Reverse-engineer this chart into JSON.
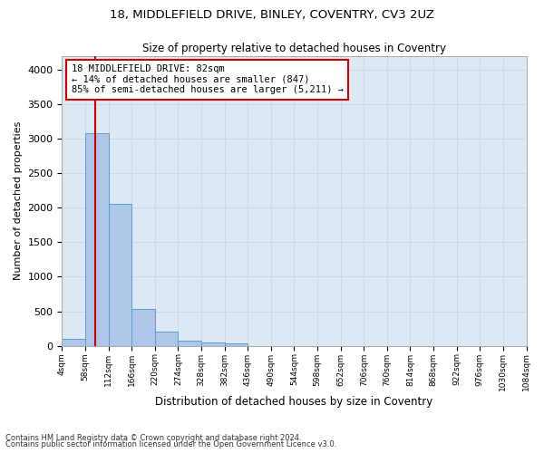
{
  "title_line1": "18, MIDDLEFIELD DRIVE, BINLEY, COVENTRY, CV3 2UZ",
  "title_line2": "Size of property relative to detached houses in Coventry",
  "xlabel": "Distribution of detached houses by size in Coventry",
  "ylabel": "Number of detached properties",
  "bar_edges": [
    4,
    58,
    112,
    166,
    220,
    274,
    328,
    382,
    436,
    490,
    544,
    598,
    652,
    706,
    760,
    814,
    868,
    922,
    976,
    1030,
    1084
  ],
  "bar_heights": [
    100,
    3080,
    2050,
    530,
    210,
    75,
    50,
    30,
    0,
    0,
    0,
    0,
    0,
    0,
    0,
    0,
    0,
    0,
    0,
    0
  ],
  "bar_color": "#aec6e8",
  "bar_edgecolor": "#5a9fd4",
  "grid_color": "#d0d8e8",
  "background_color": "#dde8f5",
  "fig_background": "#ffffff",
  "property_sqm": 82,
  "red_line_color": "#cc0000",
  "annotation_line1": "18 MIDDLEFIELD DRIVE: 82sqm",
  "annotation_line2": "← 14% of detached houses are smaller (847)",
  "annotation_line3": "85% of semi-detached houses are larger (5,211) →",
  "annotation_box_color": "#cc0000",
  "ylim": [
    0,
    4200
  ],
  "yticks": [
    0,
    500,
    1000,
    1500,
    2000,
    2500,
    3000,
    3500,
    4000
  ],
  "footer_line1": "Contains HM Land Registry data © Crown copyright and database right 2024.",
  "footer_line2": "Contains public sector information licensed under the Open Government Licence v3.0."
}
